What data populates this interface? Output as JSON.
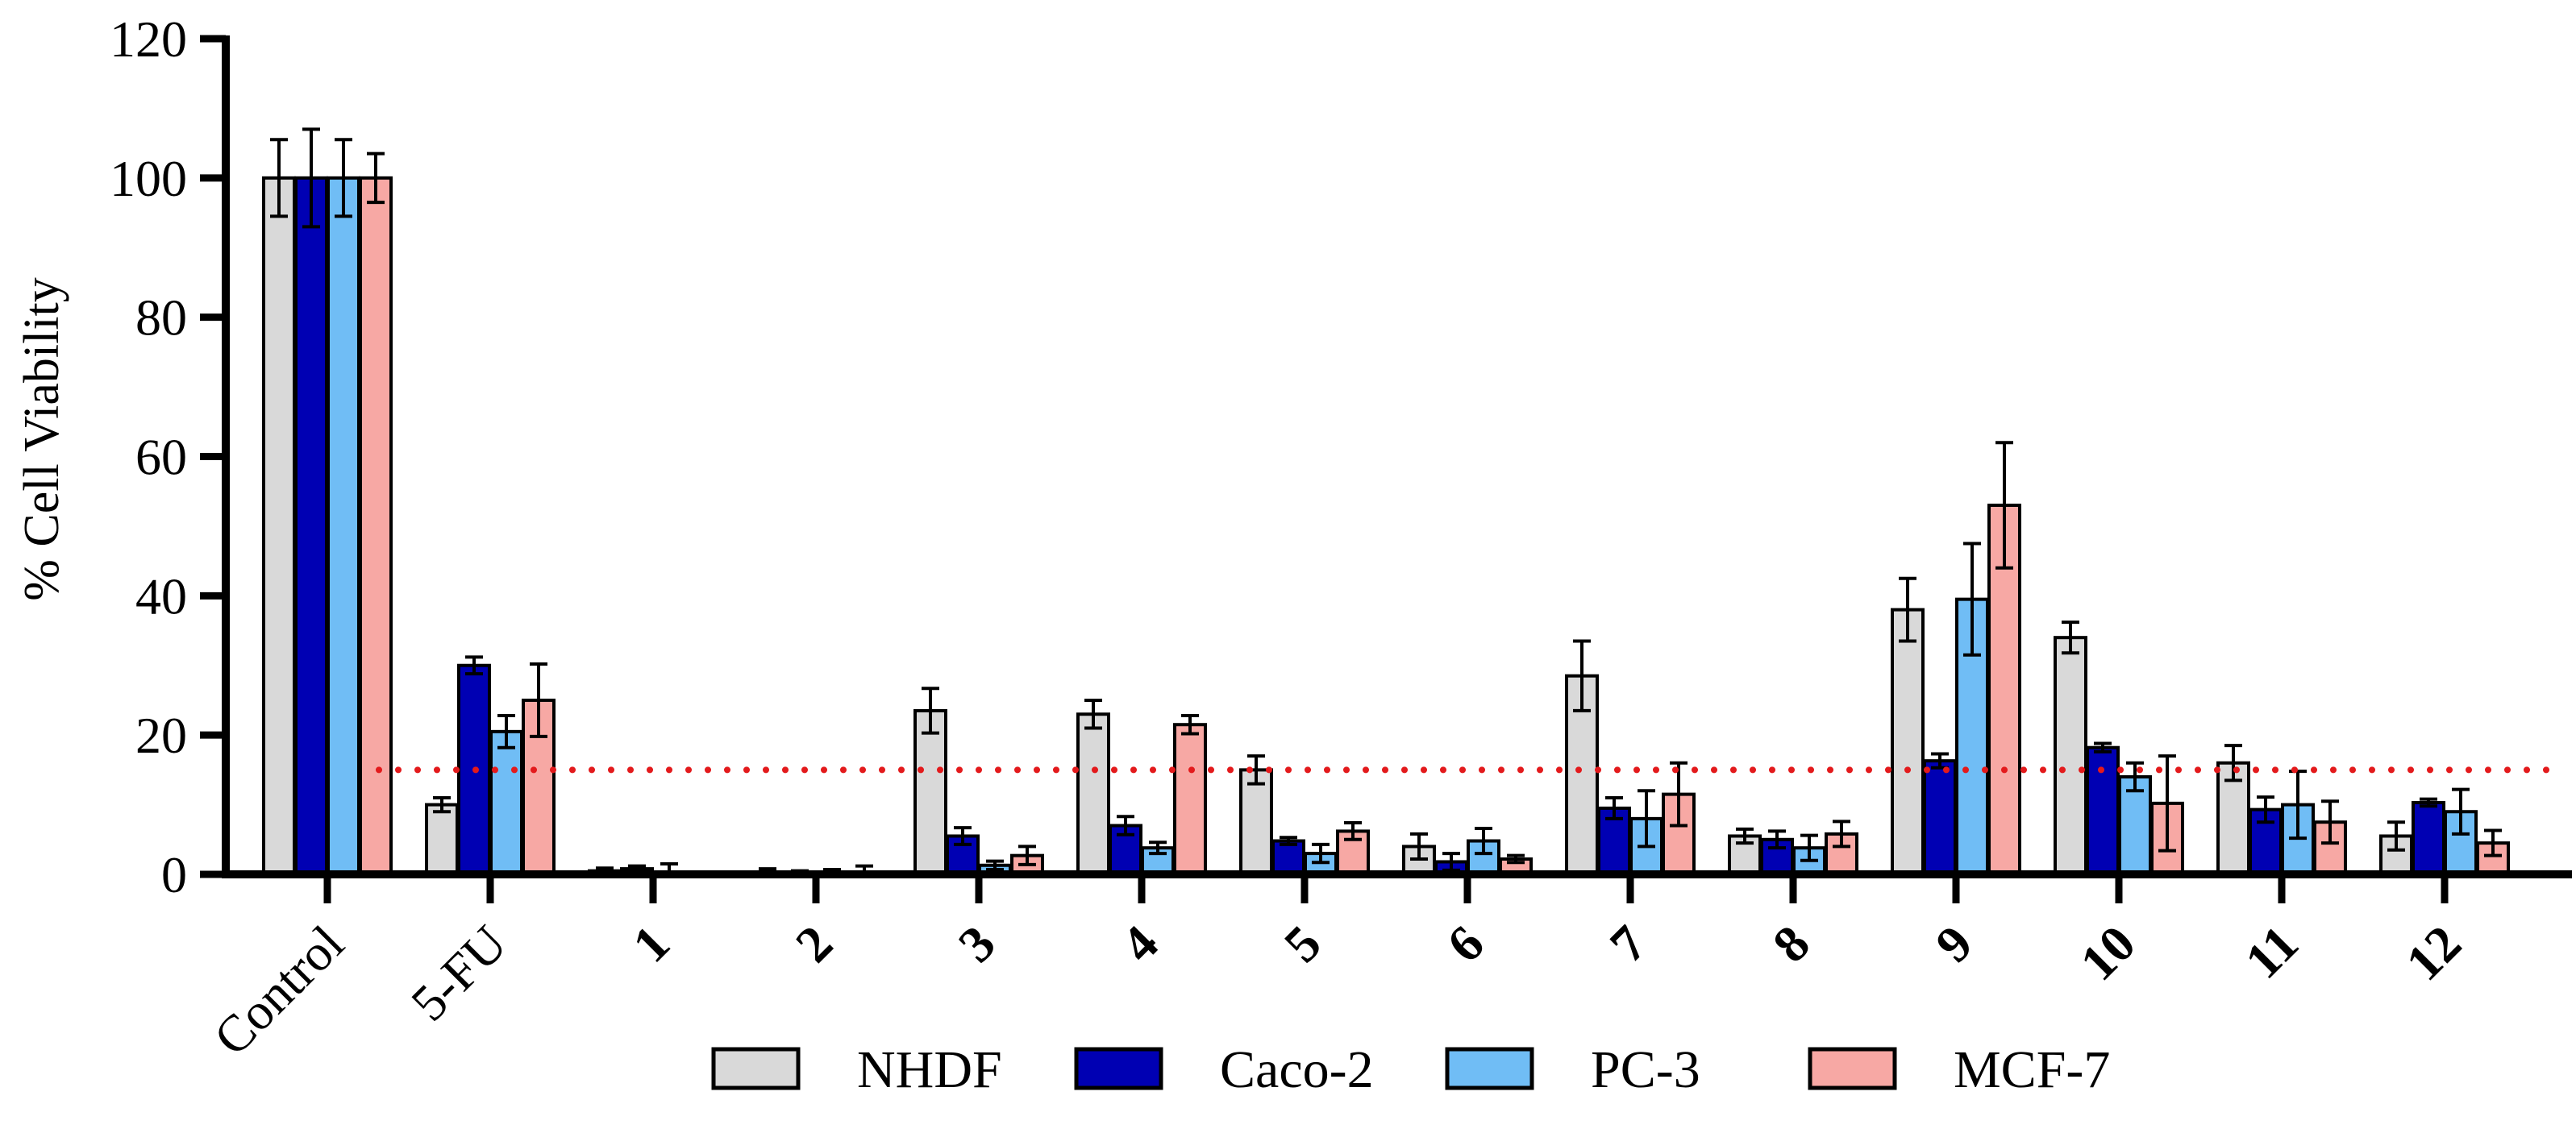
{
  "chart_data": {
    "type": "bar",
    "title": "",
    "xlabel": "",
    "ylabel": "% Cell Viability",
    "ylim": [
      0,
      120
    ],
    "yticks": [
      0,
      20,
      40,
      60,
      80,
      100,
      120
    ],
    "grid": false,
    "legend_position": "bottom",
    "categories": [
      "Control",
      "5-FU",
      "1",
      "2",
      "3",
      "4",
      "5",
      "6",
      "7",
      "8",
      "9",
      "10",
      "11",
      "12"
    ],
    "threshold": {
      "value": 15,
      "color": "#e31a1c",
      "style": "dotted"
    },
    "series": [
      {
        "name": "NHDF",
        "color": "#d9d9d9",
        "values": [
          100,
          10,
          0.5,
          0.3,
          23.5,
          23,
          15,
          4,
          28.5,
          5.5,
          38,
          34,
          16,
          5.5
        ],
        "errors": [
          5.5,
          1,
          0.4,
          0.5,
          3.2,
          2,
          2,
          1.8,
          5,
          1,
          4.5,
          2.2,
          2.5,
          2
        ]
      },
      {
        "name": "Caco-2",
        "color": "#0000b3",
        "values": [
          100,
          30,
          0.8,
          0.2,
          5.5,
          7,
          4.8,
          1.8,
          9.5,
          5,
          16.3,
          18.2,
          9.3,
          10.3
        ],
        "errors": [
          7,
          1.2,
          0.4,
          0.3,
          1.2,
          1.3,
          0.5,
          1.2,
          1.5,
          1.2,
          1,
          0.6,
          1.8,
          0.5
        ]
      },
      {
        "name": "PC-3",
        "color": "#70bdf5",
        "values": [
          100,
          20.5,
          0.2,
          0.3,
          1.3,
          3.8,
          3,
          4.8,
          8,
          3.8,
          39.5,
          14,
          10,
          9
        ],
        "errors": [
          5.5,
          2.3,
          1.3,
          0.4,
          0.6,
          0.8,
          1.3,
          1.8,
          4,
          1.8,
          8,
          2,
          4.8,
          3.2
        ]
      },
      {
        "name": "MCF-7",
        "color": "#f7a8a4",
        "values": [
          100,
          25,
          0,
          0.2,
          2.7,
          21.5,
          6.2,
          2.2,
          11.5,
          5.8,
          53,
          10.2,
          7.5,
          4.5
        ],
        "errors": [
          3.5,
          5.2,
          0,
          1,
          1.3,
          1.3,
          1.2,
          0.5,
          4.5,
          1.8,
          9,
          6.8,
          3,
          1.8
        ]
      }
    ]
  }
}
